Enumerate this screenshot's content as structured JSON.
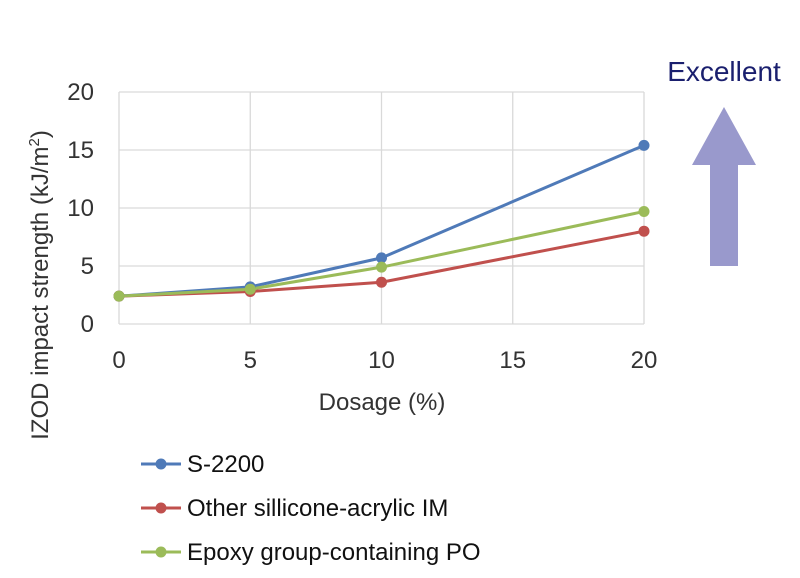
{
  "chart_data": {
    "type": "line",
    "x": [
      0,
      5,
      10,
      20
    ],
    "xlabel": "Dosage (%)",
    "ylabel_main": "IZOD impact strength (kJ/m",
    "ylabel_sup": "2",
    "ylabel_end": ")",
    "xlim": [
      0,
      20
    ],
    "ylim": [
      0,
      20
    ],
    "xticks": [
      "0",
      "5",
      "10",
      "15",
      "20"
    ],
    "yticks": [
      "0",
      "5",
      "10",
      "15",
      "20"
    ],
    "grid": true,
    "legend_position": "bottom",
    "series": [
      {
        "name": "S-2200",
        "color": "#4f7ab8",
        "values": [
          2.4,
          3.2,
          5.7,
          15.4
        ]
      },
      {
        "name": "Other sillicone-acrylic IM",
        "color": "#c0504d",
        "values": [
          2.4,
          2.8,
          3.6,
          8.0
        ]
      },
      {
        "name": "Epoxy group-containing PO",
        "color": "#9bbb59",
        "values": [
          2.4,
          3.0,
          4.9,
          9.7
        ]
      }
    ]
  },
  "annotation": {
    "label": "Excellent",
    "arrow_color": "#9999cc",
    "text_color": "#1a1f6e"
  }
}
